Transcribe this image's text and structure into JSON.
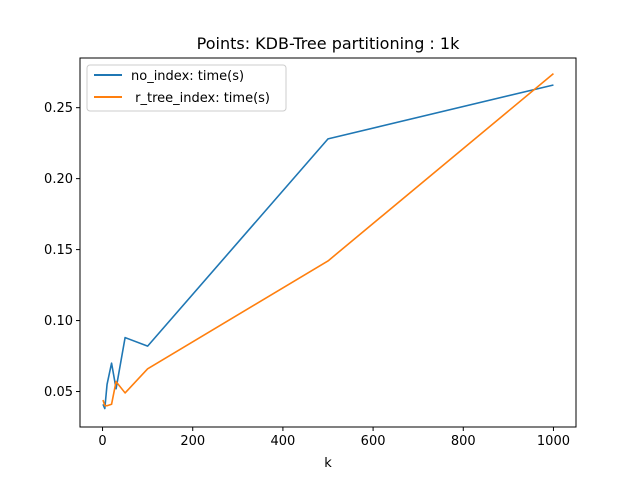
{
  "chart_data": {
    "type": "line",
    "title": "Points: KDB-Tree partitioning : 1k",
    "xlabel": "k",
    "ylabel": "",
    "xlim": [
      -50,
      1050
    ],
    "ylim": [
      0.025,
      0.285
    ],
    "xticks": [
      0,
      200,
      400,
      600,
      800,
      1000
    ],
    "xtick_labels": [
      "0",
      "200",
      "400",
      "600",
      "800",
      "1000"
    ],
    "yticks": [
      0.05,
      0.1,
      0.15,
      0.2,
      0.25
    ],
    "ytick_labels": [
      "0.05",
      "0.10",
      "0.15",
      "0.20",
      "0.25"
    ],
    "grid": false,
    "legend_position": "upper-left",
    "series": [
      {
        "name": "no_index: time(s)",
        "color": "#1f77b4",
        "x": [
          1,
          5,
          10,
          20,
          30,
          50,
          100,
          500,
          1000
        ],
        "y": [
          0.041,
          0.038,
          0.055,
          0.07,
          0.052,
          0.088,
          0.082,
          0.228,
          0.266
        ]
      },
      {
        "name": " r_tree_index: time(s)",
        "color": "#ff7f0e",
        "x": [
          1,
          5,
          10,
          20,
          30,
          50,
          100,
          500,
          1000
        ],
        "y": [
          0.044,
          0.04,
          0.04,
          0.041,
          0.057,
          0.049,
          0.066,
          0.142,
          0.274
        ]
      }
    ]
  }
}
